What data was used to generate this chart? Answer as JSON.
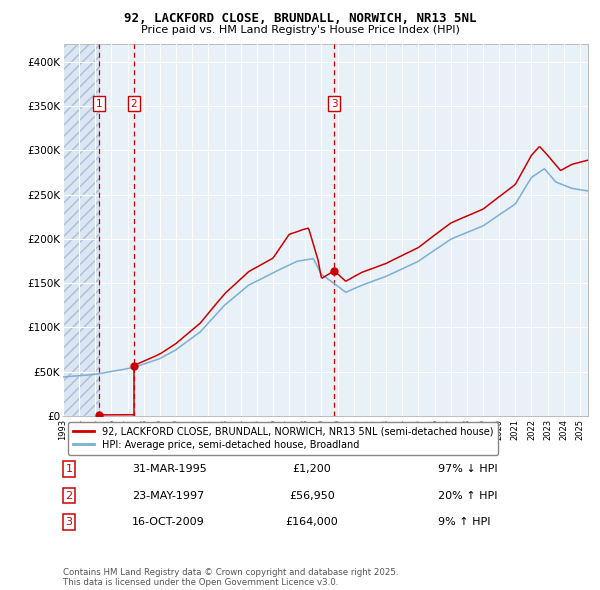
{
  "title_line1": "92, LACKFORD CLOSE, BRUNDALL, NORWICH, NR13 5NL",
  "title_line2": "Price paid vs. HM Land Registry's House Price Index (HPI)",
  "red_label": "92, LACKFORD CLOSE, BRUNDALL, NORWICH, NR13 5NL (semi-detached house)",
  "blue_label": "HPI: Average price, semi-detached house, Broadland",
  "footer": "Contains HM Land Registry data © Crown copyright and database right 2025.\nThis data is licensed under the Open Government Licence v3.0.",
  "transactions": [
    {
      "num": 1,
      "date": "31-MAR-1995",
      "price": "£1,200",
      "pct": "97% ↓ HPI",
      "year": 1995.25,
      "price_val": 1200
    },
    {
      "num": 2,
      "date": "23-MAY-1997",
      "price": "£56,950",
      "pct": "20% ↑ HPI",
      "year": 1997.38,
      "price_val": 56950
    },
    {
      "num": 3,
      "date": "16-OCT-2009",
      "price": "£164,000",
      "pct": "9% ↑ HPI",
      "year": 2009.79,
      "price_val": 164000
    }
  ],
  "hatch_start": 1993.0,
  "vline1_year": 1995.25,
  "vline2_year": 1997.38,
  "vline3_year": 2009.79,
  "ylim": [
    0,
    420000
  ],
  "xlim_start": 1993.0,
  "xlim_end": 2025.5,
  "red_color": "#cc0000",
  "blue_color": "#7bafd4",
  "hatch_bg": "#dce6f1",
  "plot_bg": "#e8f0f8",
  "grid_color": "#ffffff",
  "vline_color": "#cc0000",
  "box_color": "#cc0000",
  "hpi_keypoints": [
    [
      1993.0,
      44000
    ],
    [
      1995.0,
      47000
    ],
    [
      1997.38,
      55000
    ],
    [
      1999.0,
      65000
    ],
    [
      2000.0,
      75000
    ],
    [
      2001.5,
      95000
    ],
    [
      2003.0,
      125000
    ],
    [
      2004.5,
      148000
    ],
    [
      2006.0,
      162000
    ],
    [
      2007.5,
      175000
    ],
    [
      2008.5,
      178000
    ],
    [
      2009.0,
      160000
    ],
    [
      2009.79,
      150000
    ],
    [
      2010.5,
      140000
    ],
    [
      2011.5,
      148000
    ],
    [
      2013.0,
      158000
    ],
    [
      2015.0,
      175000
    ],
    [
      2017.0,
      200000
    ],
    [
      2019.0,
      215000
    ],
    [
      2021.0,
      240000
    ],
    [
      2022.0,
      270000
    ],
    [
      2022.8,
      280000
    ],
    [
      2023.5,
      265000
    ],
    [
      2024.5,
      258000
    ],
    [
      2025.5,
      255000
    ]
  ],
  "red_keypoints_seg2": [
    [
      1997.38,
      56950
    ],
    [
      1999.0,
      70000
    ],
    [
      2000.0,
      82000
    ],
    [
      2001.5,
      105000
    ],
    [
      2003.0,
      138000
    ],
    [
      2004.5,
      163000
    ],
    [
      2006.0,
      178000
    ],
    [
      2007.0,
      205000
    ],
    [
      2007.8,
      210000
    ],
    [
      2008.2,
      212000
    ],
    [
      2008.8,
      175000
    ],
    [
      2009.0,
      155000
    ],
    [
      2009.79,
      164000
    ]
  ],
  "red_keypoints_seg3": [
    [
      2009.79,
      164000
    ],
    [
      2010.5,
      152000
    ],
    [
      2011.5,
      162000
    ],
    [
      2013.0,
      172000
    ],
    [
      2015.0,
      190000
    ],
    [
      2017.0,
      218000
    ],
    [
      2019.0,
      234000
    ],
    [
      2021.0,
      262000
    ],
    [
      2022.0,
      295000
    ],
    [
      2022.5,
      305000
    ],
    [
      2023.0,
      295000
    ],
    [
      2023.8,
      278000
    ],
    [
      2024.5,
      285000
    ],
    [
      2025.5,
      290000
    ]
  ]
}
